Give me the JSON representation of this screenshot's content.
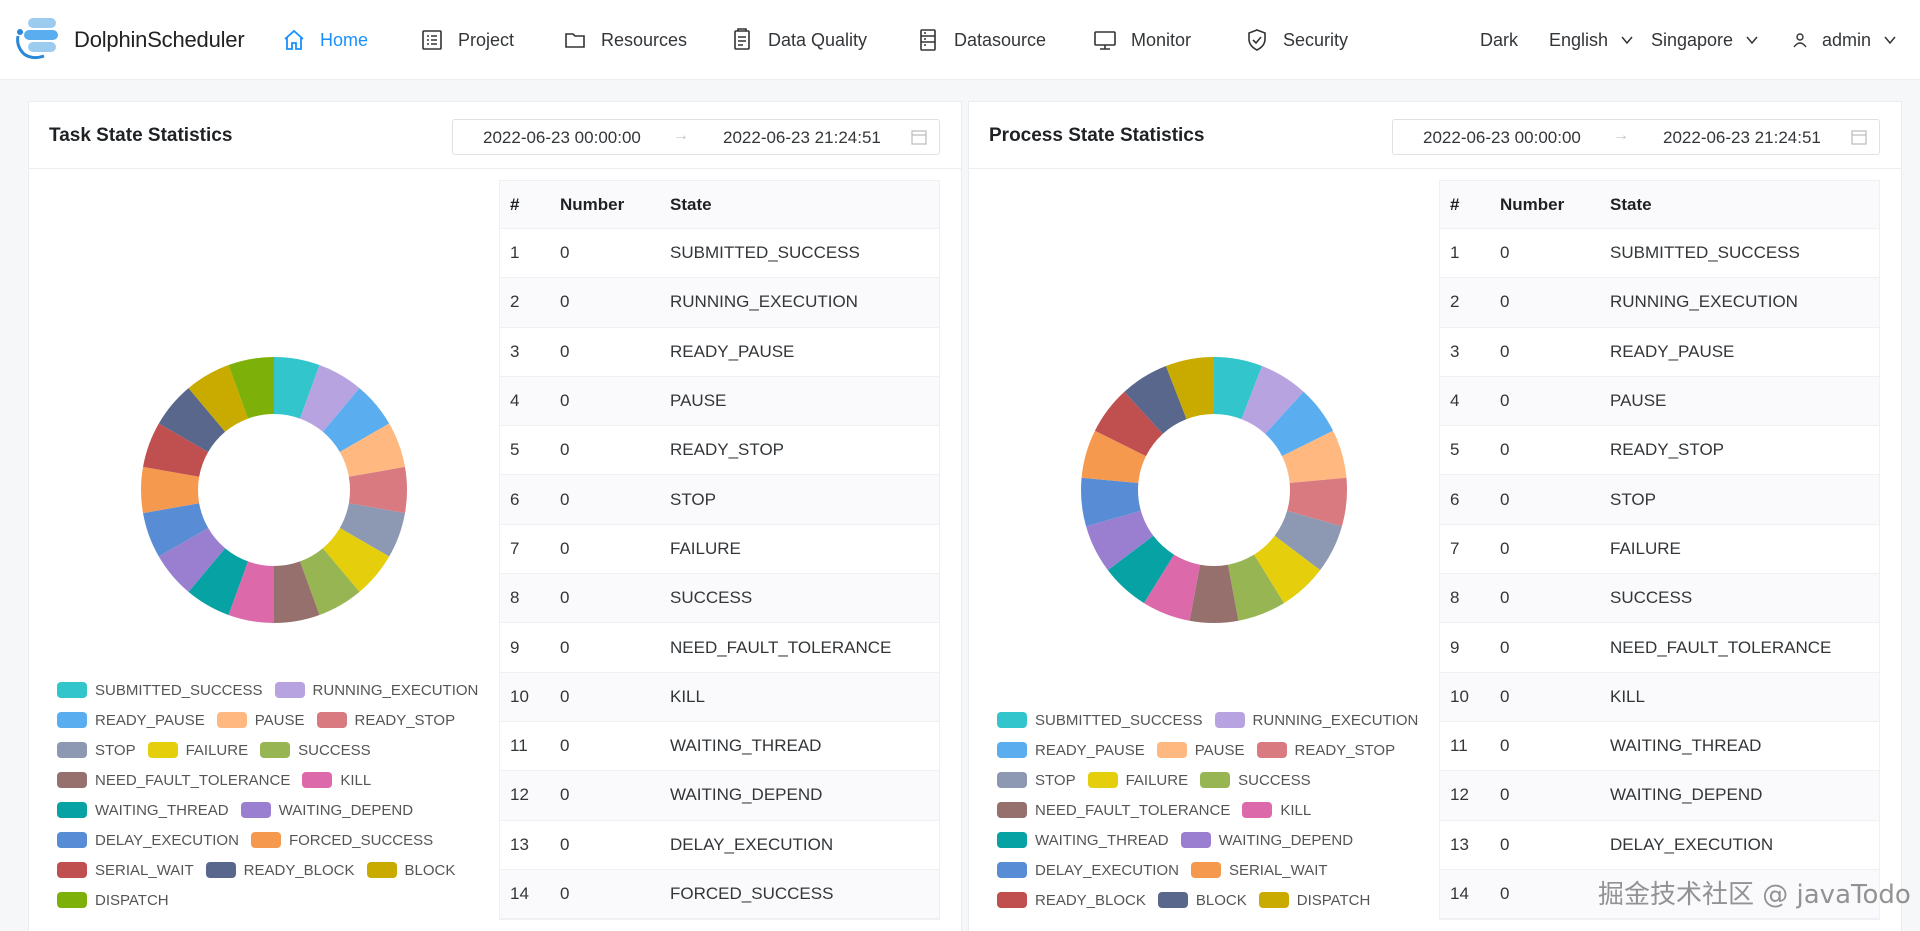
{
  "brand": {
    "name": "DolphinScheduler"
  },
  "nav": {
    "items": [
      {
        "label": "Home",
        "icon": "home-icon",
        "active": true
      },
      {
        "label": "Project",
        "icon": "project-icon"
      },
      {
        "label": "Resources",
        "icon": "folder-icon"
      },
      {
        "label": "Data Quality",
        "icon": "data-quality-icon"
      },
      {
        "label": "Datasource",
        "icon": "datasource-icon"
      },
      {
        "label": "Monitor",
        "icon": "monitor-icon"
      },
      {
        "label": "Security",
        "icon": "security-icon"
      }
    ],
    "theme": "Dark",
    "language": "English",
    "timezone": "Singapore",
    "user": "admin"
  },
  "colors": {
    "accent": "#1890ff",
    "palette": [
      "#32c5cb",
      "#b7a3e0",
      "#5aaef0",
      "#ffb980",
      "#d97a80",
      "#8d98b3",
      "#e5cf0d",
      "#97b552",
      "#95706d",
      "#dc69aa",
      "#07a2a4",
      "#9a7fd1",
      "#588dd5",
      "#f5994e",
      "#c05050",
      "#59678c",
      "#c9ab00",
      "#7eb00a"
    ]
  },
  "task_panel": {
    "title": "Task State Statistics",
    "start": "2022-06-23 00:00:00",
    "end": "2022-06-23 21:24:51",
    "legend": [
      "SUBMITTED_SUCCESS",
      "RUNNING_EXECUTION",
      "READY_PAUSE",
      "PAUSE",
      "READY_STOP",
      "STOP",
      "FAILURE",
      "SUCCESS",
      "NEED_FAULT_TOLERANCE",
      "KILL",
      "WAITING_THREAD",
      "WAITING_DEPEND",
      "DELAY_EXECUTION",
      "FORCED_SUCCESS",
      "SERIAL_WAIT",
      "READY_BLOCK",
      "BLOCK",
      "DISPATCH"
    ],
    "headers": [
      "#",
      "Number",
      "State"
    ],
    "rows": [
      [
        "1",
        "0",
        "SUBMITTED_SUCCESS"
      ],
      [
        "2",
        "0",
        "RUNNING_EXECUTION"
      ],
      [
        "3",
        "0",
        "READY_PAUSE"
      ],
      [
        "4",
        "0",
        "PAUSE"
      ],
      [
        "5",
        "0",
        "READY_STOP"
      ],
      [
        "6",
        "0",
        "STOP"
      ],
      [
        "7",
        "0",
        "FAILURE"
      ],
      [
        "8",
        "0",
        "SUCCESS"
      ],
      [
        "9",
        "0",
        "NEED_FAULT_TOLERANCE"
      ],
      [
        "10",
        "0",
        "KILL"
      ],
      [
        "11",
        "0",
        "WAITING_THREAD"
      ],
      [
        "12",
        "0",
        "WAITING_DEPEND"
      ],
      [
        "13",
        "0",
        "DELAY_EXECUTION"
      ],
      [
        "14",
        "0",
        "FORCED_SUCCESS"
      ]
    ]
  },
  "process_panel": {
    "title": "Process State Statistics",
    "start": "2022-06-23 00:00:00",
    "end": "2022-06-23 21:24:51",
    "legend": [
      "SUBMITTED_SUCCESS",
      "RUNNING_EXECUTION",
      "READY_PAUSE",
      "PAUSE",
      "READY_STOP",
      "STOP",
      "FAILURE",
      "SUCCESS",
      "NEED_FAULT_TOLERANCE",
      "KILL",
      "WAITING_THREAD",
      "WAITING_DEPEND",
      "DELAY_EXECUTION",
      "SERIAL_WAIT",
      "READY_BLOCK",
      "BLOCK",
      "DISPATCH"
    ],
    "headers": [
      "#",
      "Number",
      "State"
    ],
    "rows": [
      [
        "1",
        "0",
        "SUBMITTED_SUCCESS"
      ],
      [
        "2",
        "0",
        "RUNNING_EXECUTION"
      ],
      [
        "3",
        "0",
        "READY_PAUSE"
      ],
      [
        "4",
        "0",
        "PAUSE"
      ],
      [
        "5",
        "0",
        "READY_STOP"
      ],
      [
        "6",
        "0",
        "STOP"
      ],
      [
        "7",
        "0",
        "FAILURE"
      ],
      [
        "8",
        "0",
        "SUCCESS"
      ],
      [
        "9",
        "0",
        "NEED_FAULT_TOLERANCE"
      ],
      [
        "10",
        "0",
        "KILL"
      ],
      [
        "11",
        "0",
        "WAITING_THREAD"
      ],
      [
        "12",
        "0",
        "WAITING_DEPEND"
      ],
      [
        "13",
        "0",
        "DELAY_EXECUTION"
      ],
      [
        "14",
        "0",
        ""
      ]
    ]
  },
  "watermark": "掘金技术社区 @ javaTodo"
}
